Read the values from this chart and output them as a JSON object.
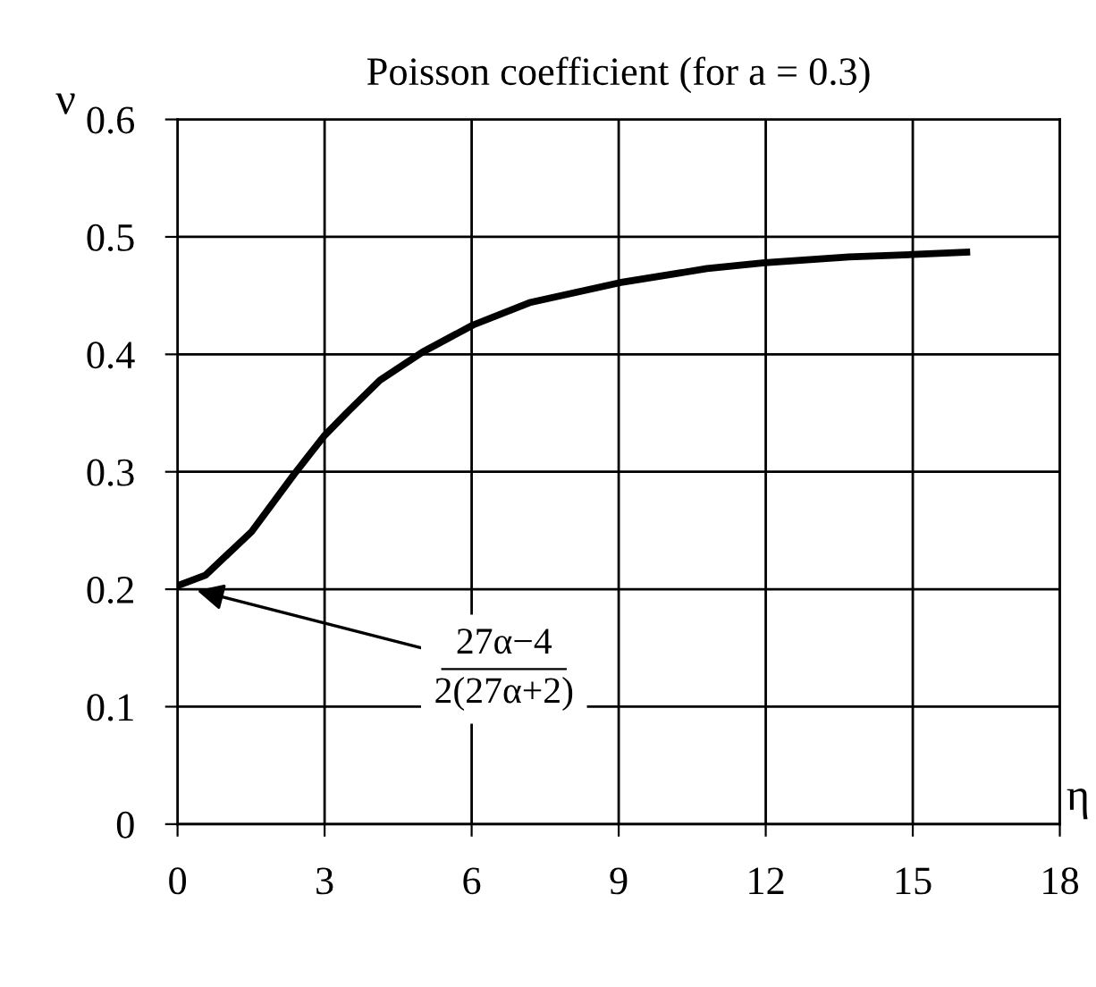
{
  "chart_data": {
    "type": "line",
    "title": "Poisson coefficient (for a = 0.3)",
    "xlabel": "η",
    "ylabel": "ν",
    "x": [
      0,
      0.57,
      1.51,
      2.38,
      2.98,
      3.47,
      4.13,
      5.0,
      6.03,
      7.18,
      9.02,
      10.8,
      11.98,
      13.7,
      15.0,
      16.1
    ],
    "series": [
      {
        "color": "#000000",
        "values": [
          0.203,
          0.212,
          0.249,
          0.298,
          0.33,
          0.351,
          0.378,
          0.402,
          0.425,
          0.444,
          0.461,
          0.473,
          0.478,
          0.483,
          0.485,
          0.487
        ]
      }
    ],
    "annotations": [
      {
        "text": "27α−4\n2(27α+2)",
        "x": 0.3,
        "y": 0.2
      }
    ],
    "xlim": [
      0,
      18
    ],
    "xticks": [
      0,
      3,
      6,
      9,
      12,
      15,
      18
    ],
    "ylim": [
      0,
      0.6
    ],
    "yticks": [
      0,
      0.1,
      0.2,
      0.3,
      0.4,
      0.5,
      0.6
    ],
    "grid": true,
    "marker": "none",
    "line_style": "solid",
    "legend": false
  }
}
